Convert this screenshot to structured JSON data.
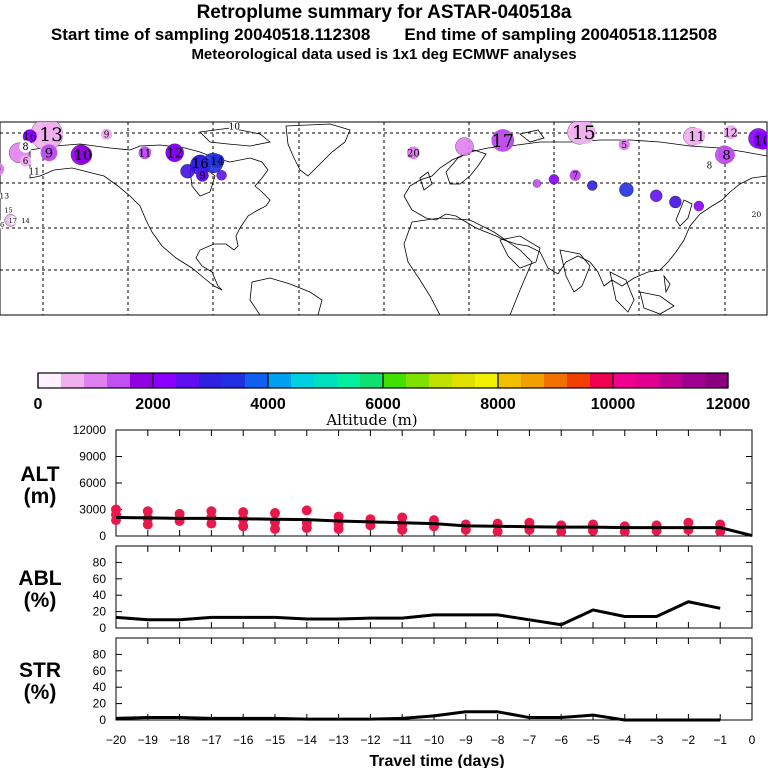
{
  "header": {
    "title": "Retroplume summary for ASTAR-040518a",
    "start_label": "Start time of sampling 20040518.112308",
    "end_label": "End time of sampling 20040518.112508",
    "met_label": "Meteorological data used is 1x1 deg ECMWF analyses"
  },
  "map": {
    "labels": [
      {
        "text": "16",
        "color": "#8a00ff",
        "lon": -176,
        "lat": 81,
        "s": 1.0
      },
      {
        "text": "13",
        "color": "#f0b0f0",
        "lon": -166,
        "lat": 82,
        "s": 1.7
      },
      {
        "text": "8",
        "color": "#ffffff",
        "lon": -178,
        "lat": 76,
        "s": 0.9
      },
      {
        "text": "9",
        "color": "#c050f0",
        "lon": -167,
        "lat": 73,
        "s": 1.2
      },
      {
        "text": "10",
        "color": "#9000e0",
        "lon": -151,
        "lat": 72,
        "s": 1.3
      },
      {
        "text": "9",
        "color": "#f0b0f0",
        "lon": -140,
        "lat": 82,
        "s": 0.8
      },
      {
        "text": "10",
        "color": "#ffffff",
        "lon": -80,
        "lat": 86,
        "s": 0.8
      },
      {
        "text": "12",
        "color": "#8a00ff",
        "lon": -108,
        "lat": 73,
        "s": 1.2
      },
      {
        "text": "11",
        "color": "#c050f0",
        "lon": -122,
        "lat": 73,
        "s": 0.9
      },
      {
        "text": "9",
        "color": "#e080f0",
        "lon": -191,
        "lat": 65,
        "s": 0.9
      },
      {
        "text": "6",
        "color": "#f0b0f0",
        "lon": -178,
        "lat": 69,
        "s": 0.8
      },
      {
        "text": "11",
        "color": "#ffffff",
        "lon": -174,
        "lat": 64,
        "s": 0.8
      },
      {
        "text": "13",
        "color": "#ffffff",
        "lon": -188,
        "lat": 52,
        "s": 0.7
      },
      {
        "text": "15",
        "color": "#ffffff",
        "lon": -186,
        "lat": 45,
        "s": 0.6
      },
      {
        "text": "14",
        "color": "#ffffff",
        "lon": -178,
        "lat": 40,
        "s": 0.6
      },
      {
        "text": "16",
        "color": "#ffffff",
        "lon": -190,
        "lat": 38,
        "s": 0.6
      },
      {
        "text": "17",
        "color": "#ffffff",
        "lon": -184,
        "lat": 40,
        "s": 0.6
      },
      {
        "text": "16",
        "color": "#3020e0",
        "lon": -96,
        "lat": 68,
        "s": 1.2
      },
      {
        "text": "14",
        "color": "#2030e0",
        "lon": -88,
        "lat": 69,
        "s": 1.0
      },
      {
        "text": "9",
        "color": "#6010f0",
        "lon": -95,
        "lat": 62,
        "s": 0.9
      },
      {
        "text": "15",
        "color": "#f0b0f0",
        "lon": 84,
        "lat": 83,
        "s": 1.7
      },
      {
        "text": "17",
        "color": "#c050f0",
        "lon": 46,
        "lat": 79,
        "s": 1.6
      },
      {
        "text": "11",
        "color": "#f0b0f0",
        "lon": 137,
        "lat": 81,
        "s": 1.2
      },
      {
        "text": "12",
        "color": "#f0b0f0",
        "lon": 153,
        "lat": 83,
        "s": 1.0
      },
      {
        "text": "10",
        "color": "#8a00ff",
        "lon": 168,
        "lat": 79,
        "s": 1.3
      },
      {
        "text": "8",
        "color": "#c050f0",
        "lon": 151,
        "lat": 72,
        "s": 1.2
      },
      {
        "text": "5",
        "color": "#e080f0",
        "lon": 103,
        "lat": 77,
        "s": 0.8
      },
      {
        "text": "20",
        "color": "#e080f0",
        "lon": 4,
        "lat": 73,
        "s": 0.9
      },
      {
        "text": "20",
        "color": "#ffffff",
        "lon": 165,
        "lat": 43,
        "s": 0.7
      },
      {
        "text": "7",
        "color": "#c050f0",
        "lon": 80,
        "lat": 62,
        "s": 0.8
      },
      {
        "text": "8",
        "color": "#ffffff",
        "lon": 143,
        "lat": 67,
        "s": 0.8
      }
    ],
    "dots": [
      {
        "lon": -181,
        "lat": 73,
        "r": 10,
        "color": "#e080f0"
      },
      {
        "lon": -168,
        "lat": 82,
        "r": 16,
        "color": "#f0b0f0"
      },
      {
        "lon": -152,
        "lat": 72,
        "r": 10,
        "color": "#9000e0"
      },
      {
        "lon": -108,
        "lat": 73,
        "r": 9,
        "color": "#8a00ff"
      },
      {
        "lon": -96,
        "lat": 67,
        "r": 10,
        "color": "#3020e0"
      },
      {
        "lon": -90,
        "lat": 68,
        "r": 10,
        "color": "#2030e0"
      },
      {
        "lon": -102,
        "lat": 64,
        "r": 7,
        "color": "#4010e0"
      },
      {
        "lon": -86,
        "lat": 62,
        "r": 5,
        "color": "#6010f0"
      },
      {
        "lon": 28,
        "lat": 76,
        "r": 9,
        "color": "#e080f0"
      },
      {
        "lon": 46,
        "lat": 79,
        "r": 11,
        "color": "#c050f0"
      },
      {
        "lon": 82,
        "lat": 83,
        "r": 12,
        "color": "#f0b0f0"
      },
      {
        "lon": 135,
        "lat": 81,
        "r": 9,
        "color": "#f0b0f0"
      },
      {
        "lon": 166,
        "lat": 80,
        "r": 10,
        "color": "#8a00ff"
      },
      {
        "lon": 150,
        "lat": 72,
        "r": 9,
        "color": "#c050f0"
      },
      {
        "lon": 70,
        "lat": 60,
        "r": 5,
        "color": "#8a00ff"
      },
      {
        "lon": 88,
        "lat": 57,
        "r": 5,
        "color": "#3020e0"
      },
      {
        "lon": 104,
        "lat": 55,
        "r": 7,
        "color": "#2030e0"
      },
      {
        "lon": 118,
        "lat": 52,
        "r": 6,
        "color": "#6010f0"
      },
      {
        "lon": 127,
        "lat": 49,
        "r": 6,
        "color": "#4010e0"
      },
      {
        "lon": 138,
        "lat": 47,
        "r": 5,
        "color": "#8a00ff"
      },
      {
        "lon": 62,
        "lat": 58,
        "r": 4,
        "color": "#c050f0"
      },
      {
        "lon": -185,
        "lat": 40,
        "r": 6,
        "color": "#f0b0f0"
      }
    ]
  },
  "colorbar": {
    "colors": [
      "#fff0ff",
      "#f0b0f0",
      "#e080f0",
      "#c050f0",
      "#9000e0",
      "#8a00ff",
      "#6010f0",
      "#3020e0",
      "#2030e0",
      "#1060f0",
      "#00a0f0",
      "#00d0e0",
      "#00e0c0",
      "#00f0a0",
      "#10e070",
      "#40e000",
      "#80e000",
      "#c0e000",
      "#e0e000",
      "#f0f000",
      "#f0c000",
      "#f0a000",
      "#f07000",
      "#f04000",
      "#f00050",
      "#f00090",
      "#e00090",
      "#c00090",
      "#a00090",
      "#8a0080"
    ],
    "tick_labels": [
      "0",
      "2000",
      "4000",
      "6000",
      "8000",
      "10000",
      "12000"
    ],
    "label": "Altitude (m)"
  },
  "chart_data": [
    {
      "type": "line",
      "panel": "ALT",
      "title_line1": "ALT",
      "title_line2": "(m)",
      "ylim": [
        0,
        12000
      ],
      "yticks": [
        0,
        3000,
        6000,
        9000,
        12000
      ],
      "ytick_labels": [
        "0",
        "3000",
        "6000",
        "9000",
        "12000"
      ],
      "x": [
        -20,
        -19,
        -18,
        -17,
        -16,
        -15,
        -14,
        -13,
        -12,
        -11,
        -10,
        -9,
        -8,
        -7,
        -6,
        -5,
        -4,
        -3,
        -2,
        -1,
        0
      ],
      "values": [
        2100,
        2050,
        2000,
        2000,
        1950,
        1900,
        1850,
        1700,
        1600,
        1500,
        1400,
        1150,
        1100,
        1050,
        1000,
        1000,
        950,
        950,
        950,
        950,
        50
      ],
      "scatter": [
        {
          "x": -20,
          "y": 3000
        },
        {
          "x": -20,
          "y": 2400
        },
        {
          "x": -20,
          "y": 1800
        },
        {
          "x": -19,
          "y": 2800
        },
        {
          "x": -19,
          "y": 2000
        },
        {
          "x": -19,
          "y": 1300
        },
        {
          "x": -18,
          "y": 2500
        },
        {
          "x": -18,
          "y": 1700
        },
        {
          "x": -17,
          "y": 2800
        },
        {
          "x": -17,
          "y": 2100
        },
        {
          "x": -17,
          "y": 1400
        },
        {
          "x": -16,
          "y": 2700
        },
        {
          "x": -16,
          "y": 1900
        },
        {
          "x": -16,
          "y": 1100
        },
        {
          "x": -15,
          "y": 2600
        },
        {
          "x": -15,
          "y": 1600
        },
        {
          "x": -15,
          "y": 800
        },
        {
          "x": -14,
          "y": 2900
        },
        {
          "x": -14,
          "y": 1500
        },
        {
          "x": -14,
          "y": 900
        },
        {
          "x": -13,
          "y": 2200
        },
        {
          "x": -13,
          "y": 1400
        },
        {
          "x": -13,
          "y": 800
        },
        {
          "x": -12,
          "y": 1900
        },
        {
          "x": -12,
          "y": 1200
        },
        {
          "x": -11,
          "y": 2100
        },
        {
          "x": -11,
          "y": 1300
        },
        {
          "x": -11,
          "y": 700
        },
        {
          "x": -10,
          "y": 1800
        },
        {
          "x": -10,
          "y": 1100
        },
        {
          "x": -9,
          "y": 1300
        },
        {
          "x": -9,
          "y": 700
        },
        {
          "x": -8,
          "y": 1400
        },
        {
          "x": -8,
          "y": 500
        },
        {
          "x": -7,
          "y": 1500
        },
        {
          "x": -7,
          "y": 700
        },
        {
          "x": -6,
          "y": 1200
        },
        {
          "x": -6,
          "y": 500
        },
        {
          "x": -5,
          "y": 1300
        },
        {
          "x": -5,
          "y": 600
        },
        {
          "x": -4,
          "y": 1100
        },
        {
          "x": -4,
          "y": 500
        },
        {
          "x": -3,
          "y": 1200
        },
        {
          "x": -3,
          "y": 600
        },
        {
          "x": -2,
          "y": 1500
        },
        {
          "x": -2,
          "y": 700
        },
        {
          "x": -1,
          "y": 1300
        },
        {
          "x": -1,
          "y": 500
        }
      ],
      "scatter_color": "#e8184a"
    },
    {
      "type": "line",
      "panel": "ABL",
      "title_line1": "ABL",
      "title_line2": "(%)",
      "ylim": [
        0,
        100
      ],
      "yticks": [
        0,
        20,
        40,
        60,
        80
      ],
      "ytick_labels": [
        "0",
        "20",
        "40",
        "60",
        "80"
      ],
      "x": [
        -20,
        -19,
        -18,
        -17,
        -16,
        -15,
        -14,
        -13,
        -12,
        -11,
        -10,
        -9,
        -8,
        -7,
        -6,
        -5,
        -4,
        -3,
        -2,
        -1
      ],
      "values": [
        13,
        10,
        10,
        13,
        13,
        13,
        11,
        11,
        12,
        12,
        16,
        16,
        16,
        10,
        4,
        22,
        14,
        14,
        32,
        24
      ]
    },
    {
      "type": "line",
      "panel": "STR",
      "title_line1": "STR",
      "title_line2": "(%)",
      "ylim": [
        0,
        100
      ],
      "yticks": [
        0,
        20,
        40,
        60,
        80
      ],
      "ytick_labels": [
        "0",
        "20",
        "40",
        "60",
        "80"
      ],
      "x": [
        -20,
        -19,
        -18,
        -17,
        -16,
        -15,
        -14,
        -13,
        -12,
        -11,
        -10,
        -9,
        -8,
        -7,
        -6,
        -5,
        -4,
        -3,
        -2,
        -1
      ],
      "values": [
        2,
        3,
        3,
        2,
        2,
        2,
        1,
        1,
        1,
        2,
        5,
        10,
        10,
        3,
        3,
        6,
        0,
        0,
        0,
        0
      ]
    }
  ],
  "xaxis": {
    "ticks": [
      -20,
      -19,
      -18,
      -17,
      -16,
      -15,
      -14,
      -13,
      -12,
      -11,
      -10,
      -9,
      -8,
      -7,
      -6,
      -5,
      -4,
      -3,
      -2,
      -1,
      0
    ],
    "tick_labels": [
      "−20",
      "−19",
      "−18",
      "−17",
      "−16",
      "−15",
      "−14",
      "−13",
      "−12",
      "−11",
      "−10",
      "−9",
      "−8",
      "−7",
      "−6",
      "−5",
      "−4",
      "−3",
      "−2",
      "−1",
      "0"
    ],
    "label": "Travel time (days)"
  }
}
